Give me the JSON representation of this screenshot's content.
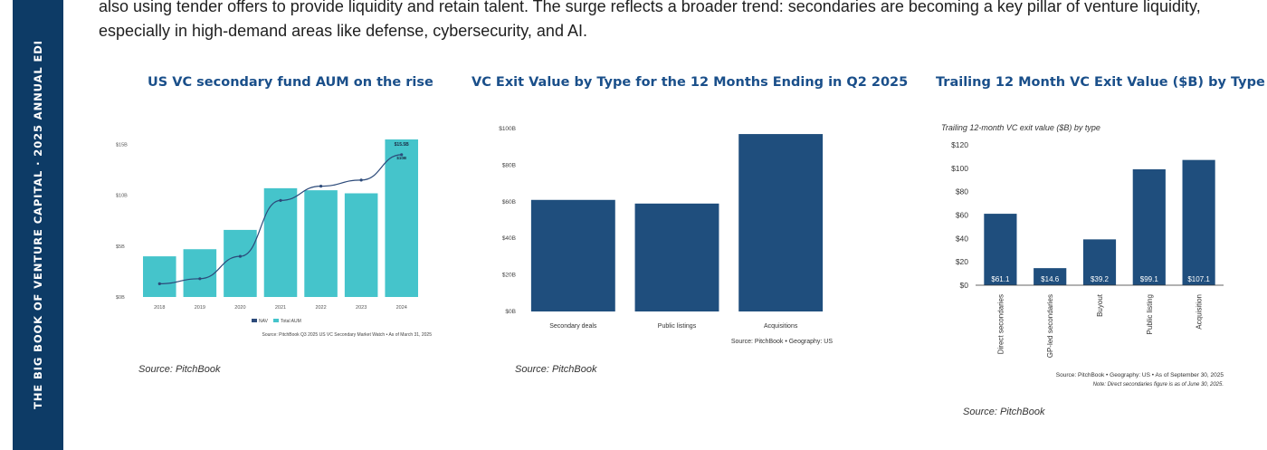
{
  "sidebar": {
    "text": "THE BIG BOOK OF VENTURE CAPITAL · 2025 ANNUAL EDI"
  },
  "intro": {
    "line1": "also using tender offers to provide liquidity and retain talent. The surge reflects a broader trend: secondaries are becoming a key pillar of venture liquidity,",
    "line2": "especially in high-demand areas like defense, cybersecurity, and AI."
  },
  "colors": {
    "sidebar": "#0d3b66",
    "title": "#1a4f8a",
    "teal": "#45c4cb",
    "navy": "#1f4e7d",
    "nav_line": "#2c4a7a"
  },
  "panels": [
    {
      "title": "US VC secondary fund AUM on the rise",
      "source": "Source: PitchBook"
    },
    {
      "title": "VC Exit Value by Type for the 12 Months Ending in Q2 2025",
      "source": "Source: PitchBook"
    },
    {
      "title": "Trailing 12 Month VC Exit Value ($B) by Type",
      "source": "Source: PitchBook"
    }
  ],
  "chart_data": [
    {
      "type": "bar",
      "categories": [
        "2018",
        "2019",
        "2020",
        "2021",
        "2022",
        "2023",
        "2024"
      ],
      "series": [
        {
          "name": "Total AUM",
          "kind": "bar",
          "values": [
            4.0,
            4.7,
            6.6,
            10.7,
            10.5,
            10.2,
            15.5
          ]
        },
        {
          "name": "NAV",
          "kind": "line",
          "values": [
            1.3,
            1.8,
            4.0,
            9.5,
            10.9,
            11.5,
            14.0
          ]
        }
      ],
      "ylim": [
        0,
        15.5
      ],
      "yticks": [
        "$0B",
        "$5B",
        "$10B",
        "$15B"
      ],
      "data_labels": [
        "$15.5B",
        "$10B"
      ],
      "source": "Source: PitchBook Q3 2025 US VC Secondary Market Watch • As of March 31, 2025"
    },
    {
      "type": "bar",
      "categories": [
        "Secondary deals",
        "Public listings",
        "Acquisitions"
      ],
      "values": [
        61,
        59,
        97
      ],
      "ylim": [
        0,
        100
      ],
      "yticks": [
        "$0B",
        "$20B",
        "$40B",
        "$60B",
        "$80B",
        "$100B"
      ],
      "source": "Source: PitchBook • Geography: US"
    },
    {
      "type": "bar",
      "title": "Trailing 12-month VC exit value ($B) by type",
      "categories": [
        "Direct secondaries",
        "GP-led secondaries",
        "Buyout",
        "Public listing",
        "Acquisition"
      ],
      "values": [
        61.1,
        14.6,
        39.2,
        99.1,
        107.1
      ],
      "data_labels": [
        "$61.1",
        "$14.6",
        "$39.2",
        "$99.1",
        "$107.1"
      ],
      "ylim": [
        0,
        120
      ],
      "yticks": [
        "$0",
        "$20",
        "$40",
        "$60",
        "$80",
        "$100",
        "$120"
      ],
      "source": "Source: PitchBook • Geography: US • As of September 30, 2025",
      "note": "Note: Direct secondaries figure is as of June 30, 2025."
    }
  ]
}
